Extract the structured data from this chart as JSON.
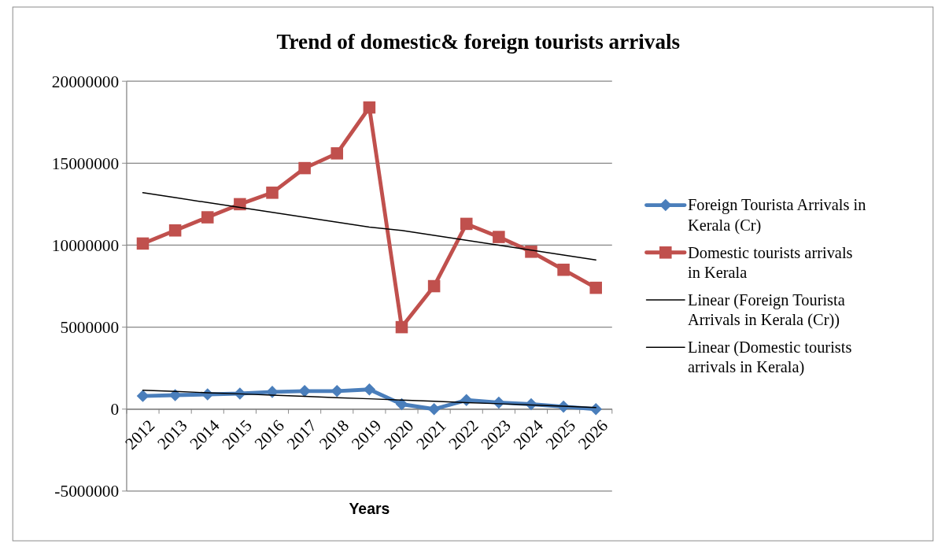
{
  "chart_data": {
    "type": "line",
    "title": "Trend of domestic& foreign tourists arrivals",
    "xlabel": "Years",
    "categories": [
      "2012",
      "2013",
      "2014",
      "2015",
      "2016",
      "2017",
      "2018",
      "2019",
      "2020",
      "2021",
      "2022",
      "2023",
      "2024",
      "2025",
      "2026"
    ],
    "series": [
      {
        "name": "Foreign Tourista Arrivals in Kerala (Cr)",
        "color": "#4a7ebb",
        "marker": "diamond",
        "values": [
          800000,
          850000,
          900000,
          950000,
          1050000,
          1100000,
          1100000,
          1200000,
          300000,
          0,
          550000,
          400000,
          300000,
          150000,
          0
        ]
      },
      {
        "name": "Domestic tourists arrivals in Kerala",
        "color": "#c0504d",
        "marker": "square",
        "values": [
          10100000,
          10900000,
          11700000,
          12500000,
          13200000,
          14700000,
          15600000,
          18400000,
          5000000,
          7500000,
          11300000,
          10500000,
          9600000,
          8500000,
          7400000
        ]
      },
      {
        "name": "Linear (Foreign Tourista Arrivals in Kerala (Cr))",
        "color": "#000000",
        "marker": "none",
        "values": [
          1150000,
          1080000,
          1000000,
          930000,
          850000,
          780000,
          700000,
          630000,
          550000,
          480000,
          400000,
          330000,
          250000,
          180000,
          100000
        ]
      },
      {
        "name": "Linear (Domestic tourists arrivals in Kerala)",
        "color": "#000000",
        "marker": "none",
        "values": [
          13200000,
          12900000,
          12600000,
          12300000,
          12000000,
          11700000,
          11400000,
          11100000,
          10900000,
          10600000,
          10300000,
          10000000,
          9700000,
          9400000,
          9100000
        ]
      }
    ],
    "ylim": [
      -5000000,
      20000000
    ],
    "yticks": [
      -5000000,
      0,
      5000000,
      10000000,
      15000000,
      20000000
    ],
    "grid": "y",
    "legend": "right"
  }
}
